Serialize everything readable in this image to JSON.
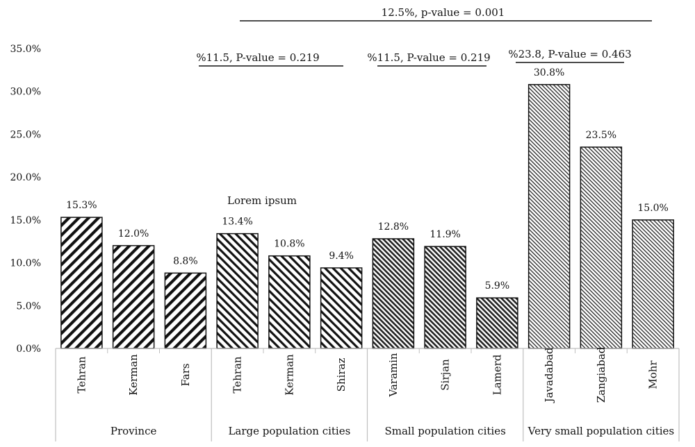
{
  "chart_data": {
    "type": "bar",
    "categories": [
      "Tehran",
      "Kerman",
      "Fars",
      "Tehran",
      "Kerman",
      "Shiraz",
      "Varamin",
      "Sirjan",
      "Lamerd",
      "Javadabad",
      "Zangiabad",
      "Mohr"
    ],
    "values": [
      15.3,
      12.0,
      8.8,
      13.4,
      10.8,
      9.4,
      12.8,
      11.9,
      5.9,
      30.8,
      23.5,
      15.0
    ],
    "data_labels": [
      "15.3%",
      "12.0%",
      "8.8%",
      "13.4%",
      "10.8%",
      "9.4%",
      "12.8%",
      "11.9%",
      "5.9%",
      "30.8%",
      "23.5%",
      "15.0%"
    ],
    "groups": [
      {
        "name": "Province",
        "start": 0,
        "count": 3
      },
      {
        "name": "Large population cities",
        "start": 3,
        "count": 3
      },
      {
        "name": "Small population cities",
        "start": 6,
        "count": 3
      },
      {
        "name": "Very small population cities",
        "start": 9,
        "count": 3
      }
    ],
    "y_ticks": [
      "0.0%",
      "5.0%",
      "10.0%",
      "15.0%",
      "20.0%",
      "25.0%",
      "30.0%",
      "35.0%"
    ],
    "ylim": [
      0,
      35
    ],
    "grid": false,
    "title": "",
    "xlabel": "",
    "ylabel": "",
    "subtitle": "Lorem ipsum",
    "annotations": [
      {
        "text": "12.5%, p-value = 0.001",
        "from_group": 1,
        "to_group": 3
      },
      {
        "text": "%11.5, P-value = 0.219",
        "group": 1
      },
      {
        "text": "%11.5, P-value = 0.219",
        "group": 2
      },
      {
        "text": "%23.8, P-value = 0.463",
        "group": 3
      }
    ],
    "colors": {
      "bar_stroke": "#111111",
      "pattern": "#111111",
      "background": "#ffffff"
    }
  }
}
